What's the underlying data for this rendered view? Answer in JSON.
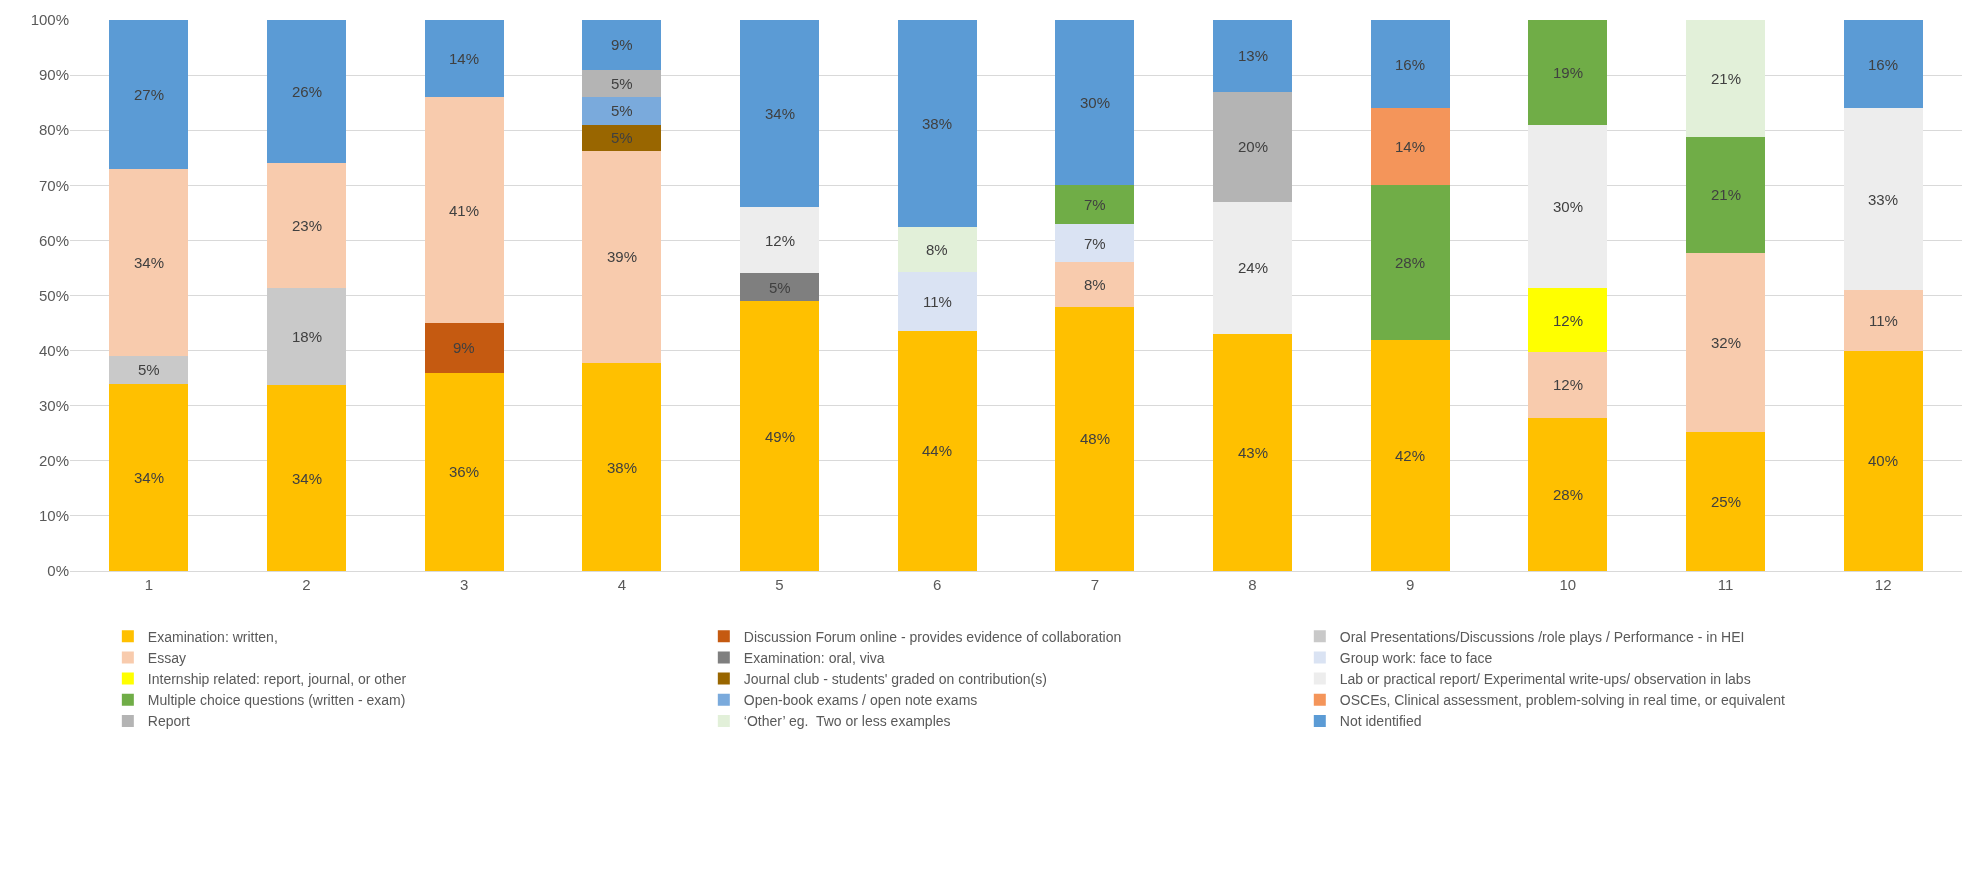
{
  "chart_data": {
    "type": "bar",
    "stacked": true,
    "categories": [
      "1",
      "2",
      "3",
      "4",
      "5",
      "6",
      "7",
      "8",
      "9",
      "10",
      "11",
      "12"
    ],
    "ylim": [
      0,
      100
    ],
    "yticks": [
      {
        "value": 0,
        "label": "0%"
      },
      {
        "value": 10,
        "label": "10%"
      },
      {
        "value": 20,
        "label": "20%"
      },
      {
        "value": 30,
        "label": "30%"
      },
      {
        "value": 40,
        "label": "40%"
      },
      {
        "value": 50,
        "label": "50%"
      },
      {
        "value": 60,
        "label": "60%"
      },
      {
        "value": 70,
        "label": "70%"
      },
      {
        "value": 80,
        "label": "80%"
      },
      {
        "value": 90,
        "label": "90%"
      },
      {
        "value": 100,
        "label": "100%"
      }
    ],
    "grid": "y",
    "legend": "bottom",
    "series": [
      {
        "name": "Examination: written,",
        "color": "#ffc000",
        "values": [
          34,
          33.7,
          36,
          37.7,
          49,
          43.6,
          48,
          43,
          42,
          27.8,
          25.3,
          40
        ],
        "value_labels": [
          "34%",
          "34%",
          "36%",
          "38%",
          "49%",
          "44%",
          "48%",
          "43%",
          "42%",
          "28%",
          "25%",
          "40%"
        ]
      },
      {
        "name": "Discussion Forum online - provides evidence of collaboration",
        "color": "#c55a11",
        "values": [
          null,
          null,
          9,
          null,
          null,
          null,
          null,
          null,
          null,
          null,
          null,
          null
        ],
        "value_labels": [
          null,
          null,
          "9%",
          null,
          null,
          null,
          null,
          null,
          null,
          null,
          null,
          null
        ]
      },
      {
        "name": "Oral Presentations/Discussions /role plays / Performance - in HEI",
        "color": "#c9c9c9",
        "values": [
          5,
          17.7,
          null,
          null,
          null,
          null,
          null,
          null,
          null,
          null,
          null,
          null
        ],
        "value_labels": [
          "5%",
          "18%",
          null,
          null,
          null,
          null,
          null,
          null,
          null,
          null,
          null,
          null
        ]
      },
      {
        "name": "Essay",
        "color": "#f8cbad",
        "values": [
          34,
          22.7,
          41,
          38.6,
          null,
          null,
          8,
          null,
          null,
          12,
          32.4,
          11
        ],
        "value_labels": [
          "34%",
          "23%",
          "41%",
          "39%",
          null,
          null,
          "8%",
          null,
          null,
          "12%",
          "32%",
          "11%"
        ]
      },
      {
        "name": "Examination: oral, viva",
        "color": "#7f7f7f",
        "values": [
          null,
          null,
          null,
          null,
          5,
          null,
          null,
          null,
          null,
          null,
          null,
          null
        ],
        "value_labels": [
          null,
          null,
          null,
          null,
          "5%",
          null,
          null,
          null,
          null,
          null,
          null,
          null
        ]
      },
      {
        "name": "Group work: face to face",
        "color": "#dae3f3",
        "values": [
          null,
          null,
          null,
          null,
          null,
          10.7,
          7,
          null,
          null,
          null,
          null,
          null
        ],
        "value_labels": [
          null,
          null,
          null,
          null,
          null,
          "11%",
          "7%",
          null,
          null,
          null,
          null,
          null
        ]
      },
      {
        "name": "Internship related: report, journal, or other",
        "color": "#ffff00",
        "values": [
          null,
          null,
          null,
          null,
          null,
          null,
          null,
          null,
          null,
          11.5,
          null,
          null
        ],
        "value_labels": [
          null,
          null,
          null,
          null,
          null,
          null,
          null,
          null,
          null,
          "12%",
          null,
          null
        ]
      },
      {
        "name": "Journal club - students' graded on contribution(s)",
        "color": "#996600",
        "values": [
          null,
          null,
          null,
          4.7,
          null,
          null,
          null,
          null,
          null,
          null,
          null,
          null
        ],
        "value_labels": [
          null,
          null,
          null,
          "5%",
          null,
          null,
          null,
          null,
          null,
          null,
          null,
          null
        ]
      },
      {
        "name": "Lab or practical report/ Experimental write-ups/ observation in labs",
        "color": "#ededed",
        "values": [
          null,
          null,
          null,
          null,
          12,
          null,
          null,
          24,
          null,
          29.7,
          null,
          33
        ],
        "value_labels": [
          null,
          null,
          null,
          null,
          "12%",
          null,
          null,
          "24%",
          null,
          "30%",
          null,
          "33%"
        ]
      },
      {
        "name": "Multiple choice questions (written - exam)",
        "color": "#70ad47",
        "values": [
          null,
          null,
          null,
          null,
          null,
          null,
          7,
          null,
          28,
          19,
          21.1,
          null
        ],
        "value_labels": [
          null,
          null,
          null,
          null,
          null,
          null,
          "7%",
          null,
          "28%",
          "19%",
          "21%",
          null
        ]
      },
      {
        "name": "Open-book exams / open note exams",
        "color": "#7aaadc",
        "values": [
          null,
          null,
          null,
          5,
          null,
          null,
          null,
          null,
          null,
          null,
          null,
          null
        ],
        "value_labels": [
          null,
          null,
          null,
          "5%",
          null,
          null,
          null,
          null,
          null,
          null,
          null,
          null
        ]
      },
      {
        "name": "OSCEs, Clinical assessment, problem-solving in real time, or equivalent",
        "color": "#f4955a",
        "values": [
          null,
          null,
          null,
          null,
          null,
          null,
          null,
          null,
          14,
          null,
          null,
          null
        ],
        "value_labels": [
          null,
          null,
          null,
          null,
          null,
          null,
          null,
          null,
          "14%",
          null,
          null,
          null
        ]
      },
      {
        "name": "Report",
        "color": "#b4b4b4",
        "values": [
          null,
          null,
          null,
          5,
          null,
          null,
          null,
          20,
          null,
          null,
          null,
          null
        ],
        "value_labels": [
          null,
          null,
          null,
          "5%",
          null,
          null,
          null,
          "20%",
          null,
          null,
          null,
          null
        ]
      },
      {
        "name": "‘Other’ eg.  Two or less examples",
        "color": "#e2f0d9",
        "values": [
          null,
          null,
          null,
          null,
          null,
          8.2,
          null,
          null,
          null,
          null,
          21.2,
          null
        ],
        "value_labels": [
          null,
          null,
          null,
          null,
          null,
          "8%",
          null,
          null,
          null,
          null,
          "21%",
          null
        ]
      },
      {
        "name": "Not identified",
        "color": "#5b9bd5",
        "values": [
          27,
          25.9,
          14,
          9,
          34,
          37.5,
          30,
          13,
          16,
          null,
          null,
          16
        ],
        "value_labels": [
          "27%",
          "26%",
          "14%",
          "9%",
          "34%",
          "38%",
          "30%",
          "13%",
          "16%",
          null,
          null,
          "16%"
        ]
      }
    ]
  }
}
